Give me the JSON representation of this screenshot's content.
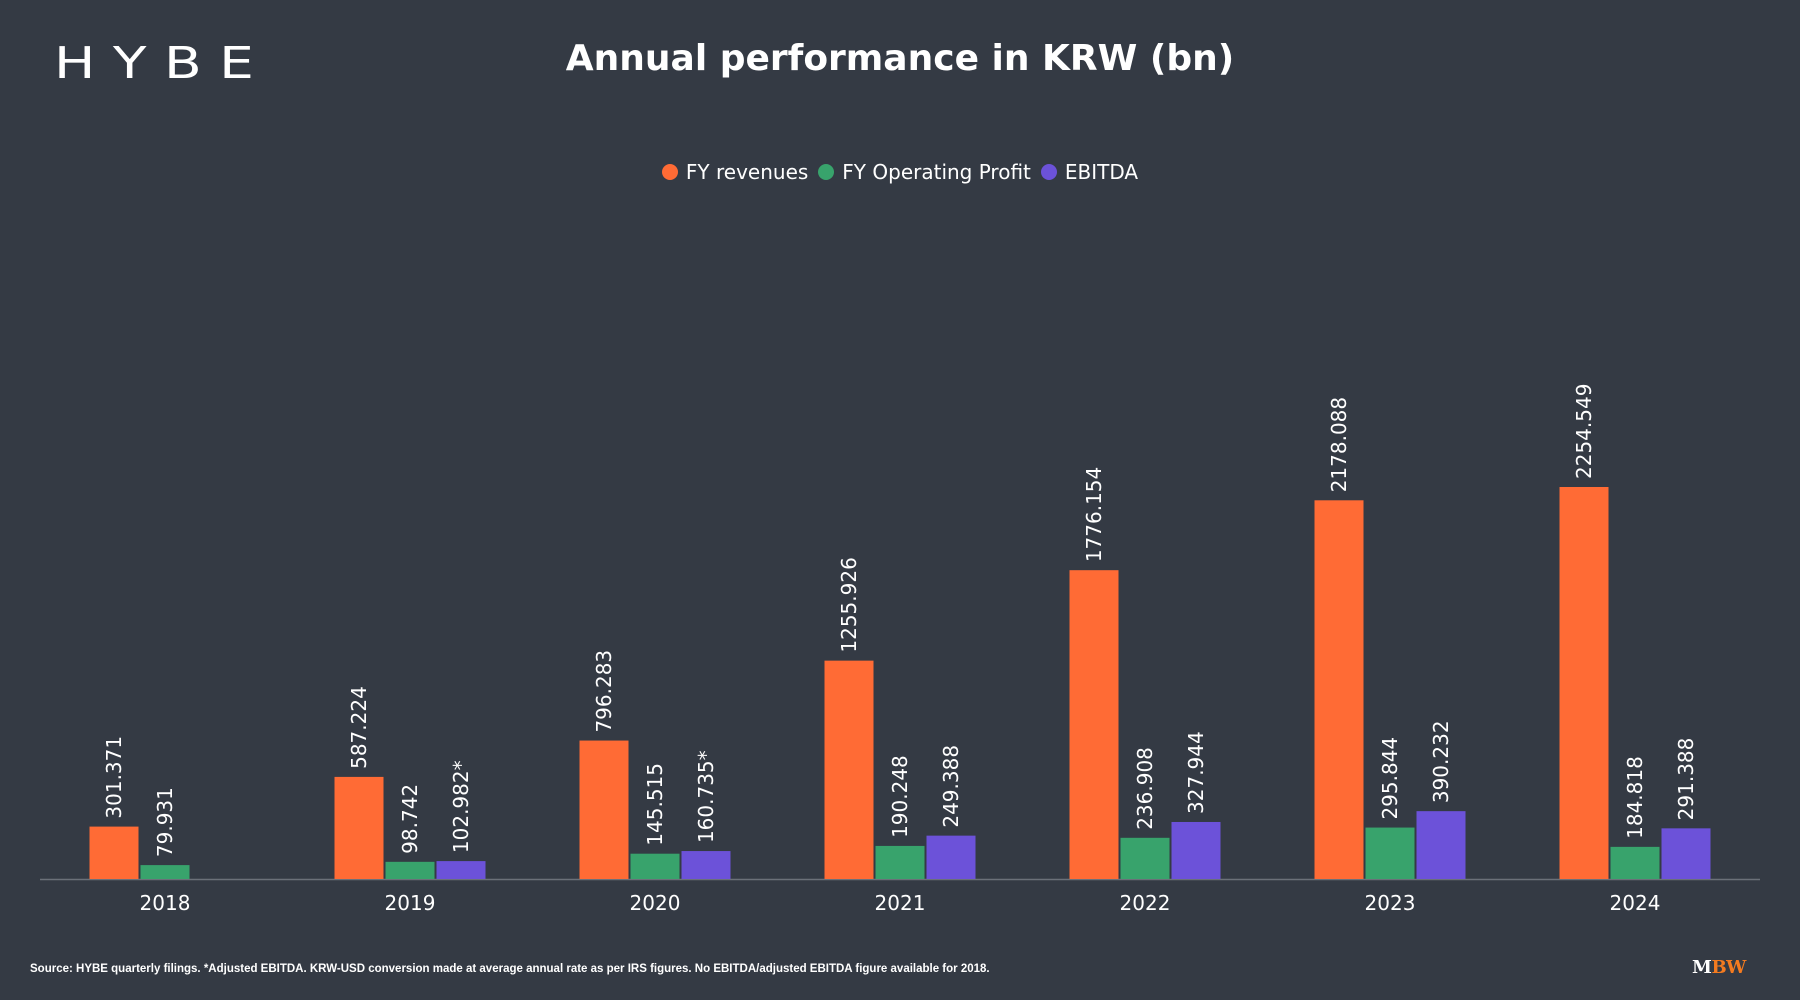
{
  "brand": {
    "logo": "HYBE",
    "publisher_m": "M",
    "publisher_bw": "BW"
  },
  "footer": {
    "source": "Source: HYBE quarterly filings. *Adjusted EBITDA. KRW-USD conversion made at average annual rate as per IRS figures. No EBITDA/adjusted EBITDA figure available for 2018."
  },
  "chart_data": {
    "type": "bar",
    "title": "Annual performance in KRW (bn)",
    "xlabel": "",
    "ylabel": "",
    "ylim": [
      0,
      2500
    ],
    "grid": false,
    "legend_position": "top-center",
    "categories": [
      "2018",
      "2019",
      "2020",
      "2021",
      "2022",
      "2023",
      "2024"
    ],
    "series": [
      {
        "name": "FY revenues",
        "color": "#ff6b35",
        "values": [
          301.371,
          587.224,
          796.283,
          1255.926,
          1776.154,
          2178.088,
          2254.549
        ],
        "labels": [
          "301.371",
          "587.224",
          "796.283",
          "1255.926",
          "1776.154",
          "2178.088",
          "2254.549"
        ]
      },
      {
        "name": "FY Operating Profit",
        "color": "#38a36c",
        "values": [
          79.931,
          98.742,
          145.515,
          190.248,
          236.908,
          295.844,
          184.818
        ],
        "labels": [
          "79.931",
          "98.742",
          "145.515",
          "190.248",
          "236.908",
          "295.844",
          "184.818"
        ]
      },
      {
        "name": "EBITDA",
        "color": "#6c52d9",
        "values": [
          null,
          102.982,
          160.735,
          249.388,
          327.944,
          390.232,
          291.388
        ],
        "labels": [
          null,
          "102.982*",
          "160.735*",
          "249.388",
          "327.944",
          "390.232",
          "291.388"
        ]
      }
    ]
  }
}
